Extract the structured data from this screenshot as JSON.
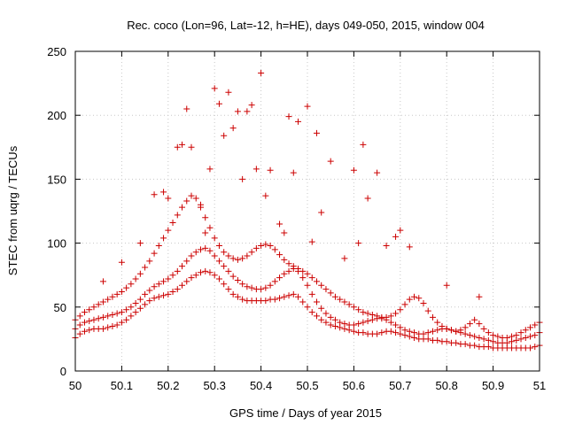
{
  "colors": {
    "series": "#cc0000",
    "axis": "#000000",
    "grid": "#c8c8c8"
  },
  "chart_data": {
    "type": "scatter",
    "title": "Rec. coco (Lon=96, Lat=-12, h=HE), days 049-050, 2015, window 004",
    "xlabel": "GPS time / Days of year 2015",
    "ylabel": "STEC from uqrg / TECUs",
    "xlim": [
      50,
      51
    ],
    "ylim": [
      0,
      250
    ],
    "xticks": [
      "50",
      "50.1",
      "50.2",
      "50.3",
      "50.4",
      "50.5",
      "50.6",
      "50.7",
      "50.8",
      "50.9",
      "51"
    ],
    "yticks": [
      "0",
      "50",
      "100",
      "150",
      "200",
      "250"
    ],
    "grid": true,
    "marker": "plus",
    "series": [
      {
        "x": [
          50.0,
          50.01,
          50.02,
          50.03,
          50.04,
          50.05,
          50.06,
          50.07,
          50.08,
          50.09,
          50.1,
          50.11,
          50.12,
          50.13,
          50.14,
          50.15,
          50.16,
          50.17,
          50.18,
          50.19,
          50.2,
          50.21,
          50.22,
          50.23,
          50.24,
          50.25,
          50.26,
          50.27,
          50.28,
          50.29,
          50.3,
          50.31,
          50.32,
          50.33,
          50.34,
          50.35,
          50.36,
          50.37,
          50.38,
          50.39,
          50.4,
          50.41,
          50.42,
          50.43,
          50.44,
          50.45,
          50.46,
          50.47,
          50.48,
          50.49,
          50.5,
          50.51,
          50.52,
          50.53,
          50.54,
          50.55,
          50.56,
          50.57,
          50.58,
          50.59,
          50.6,
          50.61,
          50.62,
          50.63,
          50.64,
          50.65,
          50.66,
          50.67,
          50.68,
          50.69,
          50.7,
          50.71,
          50.72,
          50.73,
          50.74,
          50.75,
          50.76,
          50.77,
          50.78,
          50.79,
          50.8,
          50.81,
          50.82,
          50.83,
          50.84,
          50.85,
          50.86,
          50.87,
          50.88,
          50.89,
          50.9,
          50.91,
          50.92,
          50.93,
          50.94,
          50.95,
          50.96,
          50.97,
          50.98,
          50.99,
          51.0
        ],
        "y": [
          26,
          29,
          31,
          32,
          33,
          33,
          33,
          34,
          35,
          36,
          38,
          40,
          43,
          46,
          49,
          52,
          55,
          57,
          58,
          59,
          60,
          62,
          64,
          67,
          70,
          73,
          75,
          77,
          78,
          77,
          75,
          72,
          68,
          64,
          60,
          58,
          56,
          55,
          55,
          55,
          55,
          55,
          56,
          56,
          57,
          58,
          59,
          60,
          58,
          54,
          50,
          46,
          43,
          40,
          38,
          36,
          35,
          34,
          33,
          32,
          31,
          30,
          30,
          29,
          29,
          29,
          30,
          31,
          31,
          30,
          29,
          28,
          27,
          26,
          25,
          25,
          25,
          24,
          24,
          23,
          23,
          22,
          22,
          21,
          21,
          20,
          20,
          19,
          19,
          19,
          18,
          18,
          18,
          18,
          18,
          18,
          18,
          18,
          18,
          19,
          20
        ]
      },
      {
        "x": [
          50.0,
          50.01,
          50.02,
          50.03,
          50.04,
          50.05,
          50.06,
          50.07,
          50.08,
          50.09,
          50.1,
          50.11,
          50.12,
          50.13,
          50.14,
          50.15,
          50.16,
          50.17,
          50.18,
          50.19,
          50.2,
          50.21,
          50.22,
          50.23,
          50.24,
          50.25,
          50.26,
          50.27,
          50.28,
          50.29,
          50.3,
          50.31,
          50.32,
          50.33,
          50.34,
          50.35,
          50.36,
          50.37,
          50.38,
          50.39,
          50.4,
          50.41,
          50.42,
          50.43,
          50.44,
          50.45,
          50.46,
          50.47,
          50.48,
          50.49,
          50.5,
          50.51,
          50.52,
          50.53,
          50.54,
          50.55,
          50.56,
          50.57,
          50.58,
          50.59,
          50.6,
          50.61,
          50.62,
          50.63,
          50.64,
          50.65,
          50.66,
          50.67,
          50.68,
          50.69,
          50.7,
          50.71,
          50.72,
          50.73,
          50.74,
          50.75,
          50.76,
          50.77,
          50.78,
          50.79,
          50.8,
          50.81,
          50.82,
          50.83,
          50.84,
          50.85,
          50.86,
          50.87,
          50.88,
          50.89,
          50.9,
          50.91,
          50.92,
          50.93,
          50.94,
          50.95,
          50.96,
          50.97,
          50.98,
          50.99,
          51.0
        ],
        "y": [
          33,
          36,
          38,
          39,
          40,
          41,
          42,
          43,
          44,
          45,
          46,
          48,
          50,
          53,
          56,
          60,
          63,
          66,
          68,
          70,
          72,
          75,
          78,
          82,
          86,
          90,
          93,
          95,
          96,
          94,
          90,
          86,
          82,
          78,
          74,
          71,
          68,
          66,
          65,
          64,
          64,
          65,
          67,
          70,
          73,
          76,
          78,
          80,
          78,
          73,
          67,
          60,
          54,
          49,
          45,
          42,
          40,
          38,
          37,
          36,
          36,
          37,
          38,
          39,
          40,
          41,
          41,
          40,
          38,
          36,
          34,
          32,
          31,
          30,
          29,
          29,
          30,
          31,
          32,
          33,
          33,
          32,
          31,
          30,
          29,
          28,
          27,
          26,
          25,
          24,
          23,
          22,
          22,
          22,
          23,
          24,
          25,
          26,
          27,
          28,
          30
        ]
      },
      {
        "x": [
          50.0,
          50.01,
          50.02,
          50.03,
          50.04,
          50.05,
          50.06,
          50.07,
          50.08,
          50.09,
          50.1,
          50.11,
          50.12,
          50.13,
          50.14,
          50.15,
          50.16,
          50.17,
          50.18,
          50.19,
          50.2,
          50.21,
          50.22,
          50.23,
          50.24,
          50.25,
          50.26,
          50.27,
          50.28,
          50.29,
          50.3,
          50.31,
          50.32,
          50.33,
          50.34,
          50.35,
          50.36,
          50.37,
          50.38,
          50.39,
          50.4,
          50.41,
          50.42,
          50.43,
          50.44,
          50.45,
          50.46,
          50.47,
          50.48,
          50.49,
          50.5,
          50.51,
          50.52,
          50.53,
          50.54,
          50.55,
          50.56,
          50.57,
          50.58,
          50.59,
          50.6,
          50.61,
          50.62,
          50.63,
          50.64,
          50.65,
          50.66,
          50.67,
          50.68,
          50.69,
          50.7,
          50.71,
          50.72,
          50.73,
          50.74,
          50.75,
          50.76,
          50.77,
          50.78,
          50.79,
          50.8,
          50.81,
          50.82,
          50.83,
          50.84,
          50.85,
          50.86,
          50.87,
          50.88,
          50.89,
          50.9,
          50.91,
          50.92,
          50.93,
          50.94,
          50.95,
          50.96,
          50.97,
          50.98,
          50.99,
          51.0
        ],
        "y": [
          40,
          43,
          46,
          48,
          50,
          52,
          54,
          56,
          58,
          60,
          62,
          65,
          68,
          72,
          76,
          81,
          86,
          92,
          98,
          104,
          110,
          116,
          122,
          128,
          133,
          137,
          135,
          128,
          120,
          112,
          104,
          98,
          93,
          90,
          88,
          87,
          88,
          90,
          93,
          96,
          98,
          99,
          98,
          95,
          91,
          87,
          84,
          82,
          80,
          78,
          76,
          73,
          70,
          67,
          64,
          61,
          58,
          56,
          54,
          52,
          50,
          48,
          46,
          45,
          44,
          43,
          42,
          42,
          43,
          45,
          48,
          52,
          56,
          58,
          57,
          53,
          47,
          42,
          38,
          35,
          33,
          32,
          31,
          32,
          34,
          37,
          40,
          37,
          33,
          30,
          28,
          27,
          26,
          26,
          27,
          28,
          30,
          32,
          34,
          36,
          38
        ]
      },
      {
        "x": [
          50.06,
          50.1,
          50.14,
          50.17,
          50.19,
          50.2,
          50.22,
          50.23,
          50.24,
          50.25,
          50.27,
          50.28,
          50.29,
          50.3,
          50.31,
          50.32,
          50.33,
          50.34,
          50.35,
          50.36,
          50.37,
          50.38,
          50.39,
          50.4,
          50.41,
          50.42,
          50.44,
          50.45,
          50.46,
          50.47,
          50.48,
          50.5,
          50.51,
          50.52,
          50.53,
          50.55,
          50.58,
          50.6,
          50.61,
          50.62,
          50.63,
          50.65,
          50.67,
          50.69,
          50.7,
          50.72,
          50.8,
          50.87
        ],
        "y": [
          70,
          85,
          100,
          138,
          140,
          135,
          175,
          177,
          205,
          175,
          130,
          108,
          158,
          221,
          209,
          184,
          218,
          190,
          203,
          150,
          203,
          208,
          158,
          233,
          137,
          157,
          115,
          108,
          199,
          155,
          195,
          207,
          101,
          186,
          124,
          164,
          88,
          157,
          100,
          177,
          135,
          155,
          98,
          105,
          110,
          97,
          67,
          58
        ]
      }
    ]
  }
}
